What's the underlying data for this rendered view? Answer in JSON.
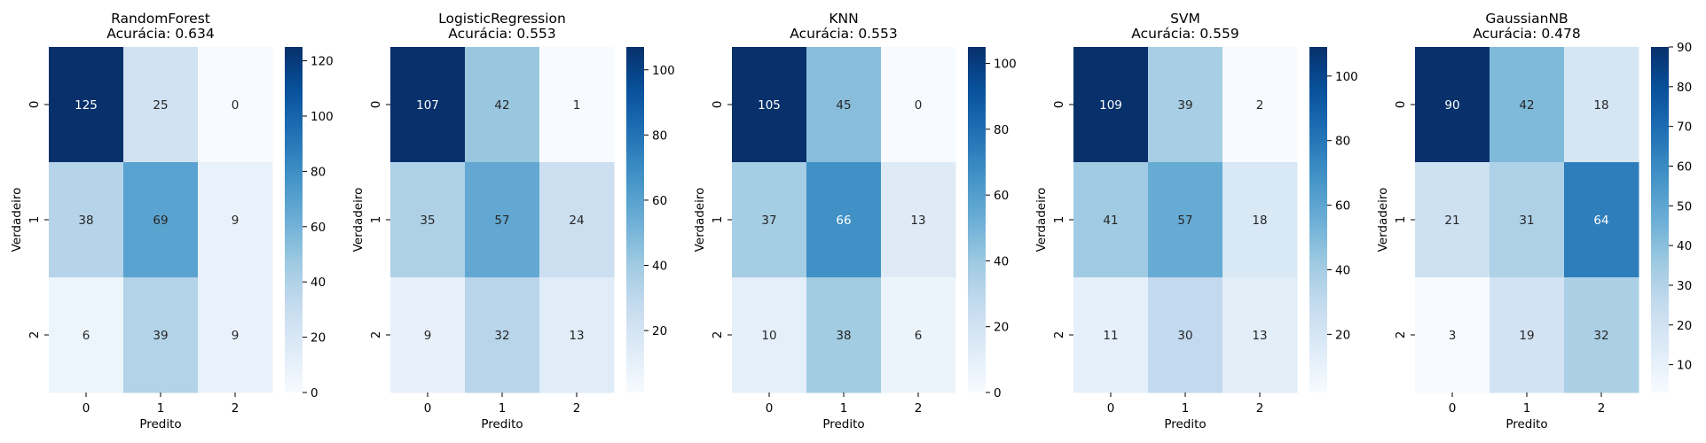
{
  "chart_data": [
    {
      "type": "heatmap",
      "title": "RandomForest",
      "subtitle": "Acurácia: 0.634",
      "xlabel": "Predito",
      "ylabel": "Verdadeiro",
      "x_categories": [
        "0",
        "1",
        "2"
      ],
      "y_categories": [
        "0",
        "1",
        "2"
      ],
      "matrix": [
        [
          125,
          25,
          0
        ],
        [
          38,
          69,
          9
        ],
        [
          6,
          39,
          9
        ]
      ],
      "colorbar_range": [
        0,
        125
      ],
      "colorbar_ticks": [
        0,
        20,
        40,
        60,
        80,
        100,
        120
      ],
      "colormap": "Blues"
    },
    {
      "type": "heatmap",
      "title": "LogisticRegression",
      "subtitle": "Acurácia: 0.553",
      "xlabel": "Predito",
      "ylabel": "Verdadeiro",
      "x_categories": [
        "0",
        "1",
        "2"
      ],
      "y_categories": [
        "0",
        "1",
        "2"
      ],
      "matrix": [
        [
          107,
          42,
          1
        ],
        [
          35,
          57,
          24
        ],
        [
          9,
          32,
          13
        ]
      ],
      "colorbar_range": [
        1,
        107
      ],
      "colorbar_ticks": [
        20,
        40,
        60,
        80,
        100
      ],
      "colormap": "Blues"
    },
    {
      "type": "heatmap",
      "title": "KNN",
      "subtitle": "Acurácia: 0.553",
      "xlabel": "Predito",
      "ylabel": "Verdadeiro",
      "x_categories": [
        "0",
        "1",
        "2"
      ],
      "y_categories": [
        "0",
        "1",
        "2"
      ],
      "matrix": [
        [
          105,
          45,
          0
        ],
        [
          37,
          66,
          13
        ],
        [
          10,
          38,
          6
        ]
      ],
      "colorbar_range": [
        0,
        105
      ],
      "colorbar_ticks": [
        0,
        20,
        40,
        60,
        80,
        100
      ],
      "colormap": "Blues"
    },
    {
      "type": "heatmap",
      "title": "SVM",
      "subtitle": "Acurácia: 0.559",
      "xlabel": "Predito",
      "ylabel": "Verdadeiro",
      "x_categories": [
        "0",
        "1",
        "2"
      ],
      "y_categories": [
        "0",
        "1",
        "2"
      ],
      "matrix": [
        [
          109,
          39,
          2
        ],
        [
          41,
          57,
          18
        ],
        [
          11,
          30,
          13
        ]
      ],
      "colorbar_range": [
        2,
        109
      ],
      "colorbar_ticks": [
        20,
        40,
        60,
        80,
        100
      ],
      "colormap": "Blues"
    },
    {
      "type": "heatmap",
      "title": "GaussianNB",
      "subtitle": "Acurácia: 0.478",
      "xlabel": "Predito",
      "ylabel": "Verdadeiro",
      "x_categories": [
        "0",
        "1",
        "2"
      ],
      "y_categories": [
        "0",
        "1",
        "2"
      ],
      "matrix": [
        [
          90,
          42,
          18
        ],
        [
          21,
          31,
          64
        ],
        [
          3,
          19,
          32
        ]
      ],
      "colorbar_range": [
        3,
        90
      ],
      "colorbar_ticks": [
        10,
        20,
        30,
        40,
        50,
        60,
        70,
        80,
        90
      ],
      "colormap": "Blues"
    }
  ]
}
